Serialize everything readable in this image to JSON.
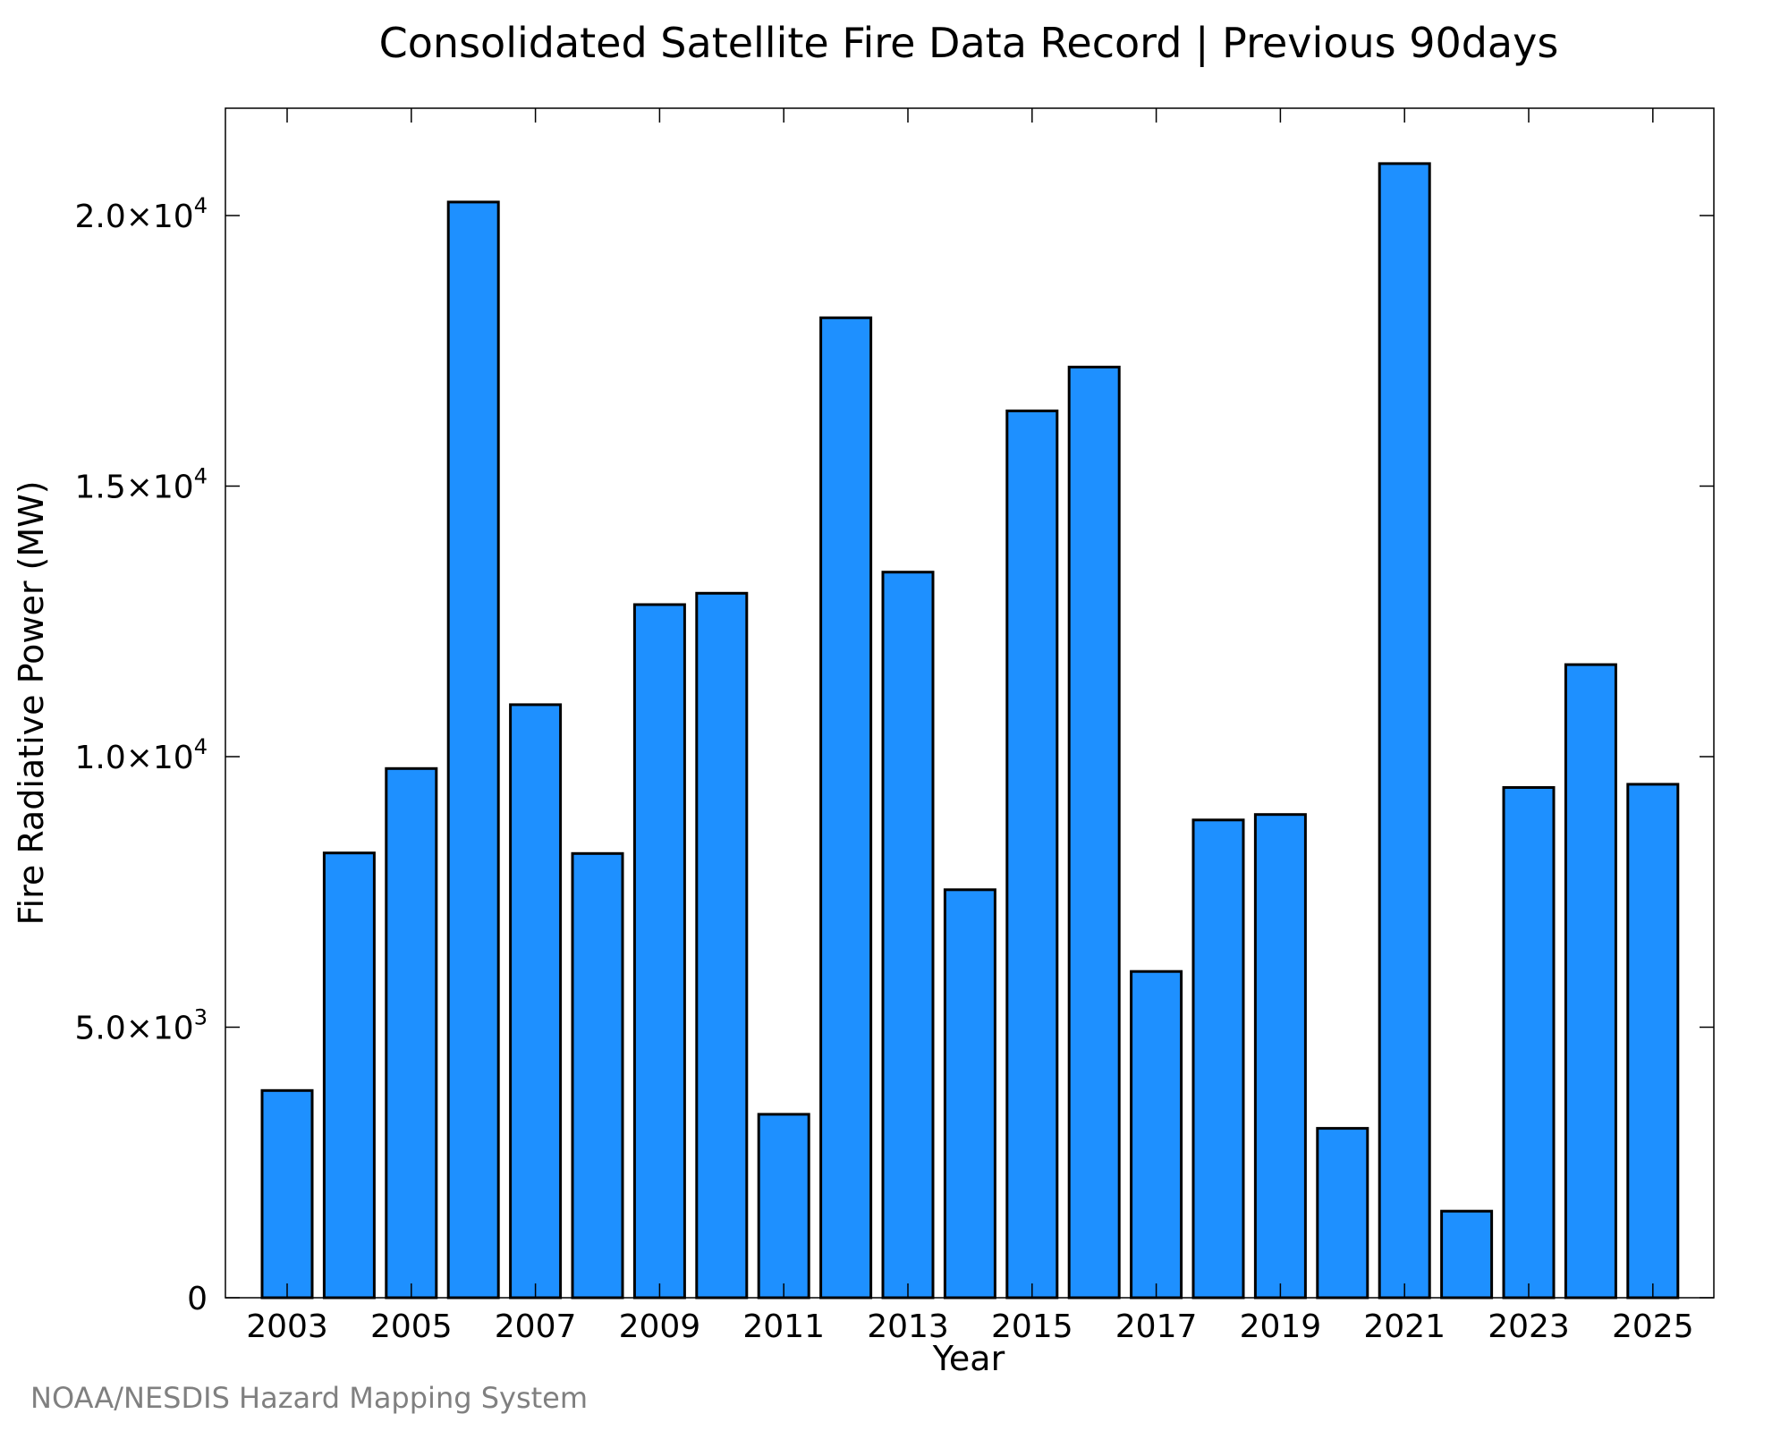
{
  "chart_data": {
    "type": "bar",
    "title": "Consolidated Satellite Fire Data Record | Previous 90days",
    "xlabel": "Year",
    "ylabel": "Fire Radiative Power (MW)",
    "categories": [
      "2003",
      "2004",
      "2005",
      "2006",
      "2007",
      "2008",
      "2009",
      "2010",
      "2011",
      "2012",
      "2013",
      "2014",
      "2015",
      "2016",
      "2017",
      "2018",
      "2019",
      "2020",
      "2021",
      "2022",
      "2023",
      "2024",
      "2025"
    ],
    "values": [
      3830,
      8220,
      9780,
      20250,
      10960,
      8210,
      12810,
      13020,
      3390,
      18110,
      13410,
      7540,
      16390,
      17200,
      6030,
      8830,
      8930,
      3130,
      20960,
      1600,
      9430,
      11700,
      9490
    ],
    "x_tick_labels": [
      "2003",
      "2005",
      "2007",
      "2009",
      "2011",
      "2013",
      "2015",
      "2017",
      "2019",
      "2021",
      "2023",
      "2025"
    ],
    "y_ticks": [
      {
        "value": 0,
        "base": "0",
        "exp": ""
      },
      {
        "value": 5000,
        "base": "5.0×10",
        "exp": "3"
      },
      {
        "value": 10000,
        "base": "1.0×10",
        "exp": "4"
      },
      {
        "value": 15000,
        "base": "1.5×10",
        "exp": "4"
      },
      {
        "value": 20000,
        "base": "2.0×10",
        "exp": "4"
      }
    ],
    "ylim": [
      0,
      22000
    ],
    "bar_color": "#1e90ff",
    "grid": false,
    "legend": "none"
  },
  "credit": "NOAA/NESDIS Hazard Mapping System"
}
